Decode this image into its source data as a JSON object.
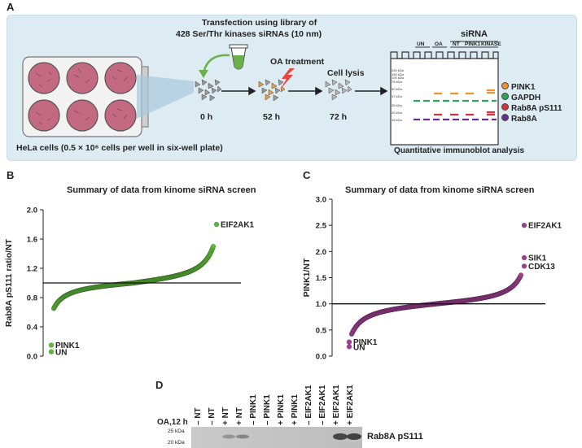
{
  "panels": {
    "A": "A",
    "B": "B",
    "C": "C",
    "D": "D"
  },
  "panelA": {
    "transfection_line1": "Transfection using library of",
    "transfection_line2": "428 Ser/Thr kinases  siRNAs (10 nm)",
    "oa_treatment": "OA treatment",
    "cell_lysis": "Cell lysis",
    "time_0": "0 h",
    "time_52": "52 h",
    "time_72": "72 h",
    "hela_caption": "HeLa cells (0.5 × 10⁶ cells per well in six-well plate)",
    "sirna_header": "siRNA",
    "lanes": [
      "UN",
      "OA",
      "NT",
      "PINK1",
      "KINASE"
    ],
    "mw_markers": [
      "250 kDa",
      "150 kDa",
      "100 kDa",
      "75 kDa",
      "50 kDa",
      "37 kDa",
      "25 kDa",
      "20 kDa",
      "15 kDa"
    ],
    "legend": [
      {
        "label": "PINK1",
        "color": "#f0932b"
      },
      {
        "label": "GAPDH",
        "color": "#2ea55a"
      },
      {
        "label": "Rab8A pS111",
        "color": "#d6303a"
      },
      {
        "label": "Rab8A",
        "color": "#6b2c91"
      }
    ],
    "immunoblot_caption": "Quantitative immunoblot analysis"
  },
  "chart_data": [
    {
      "type": "scatter",
      "panel": "B",
      "title": "Summary of data from kinome siRNA screen",
      "xlabel": "",
      "ylabel": "Rab8A pS111 ratio/NT",
      "ylim": [
        0.0,
        2.0
      ],
      "yticks": [
        "0.0",
        "0.4",
        "0.8",
        "1.2",
        "1.6",
        "2.0"
      ],
      "reference_line": 1.0,
      "color": "#5cb83a",
      "n_points": 428,
      "sorted_range": [
        0.65,
        1.5
      ],
      "highlighted": [
        {
          "label": "EIF2AK1",
          "value": 1.8
        },
        {
          "label": "PINK1",
          "value": 0.15
        },
        {
          "label": "UN",
          "value": 0.06
        }
      ]
    },
    {
      "type": "scatter",
      "panel": "C",
      "title": "Summary of data from kinome siRNA screen",
      "xlabel": "",
      "ylabel": "PINK1/NT",
      "ylim": [
        0.0,
        3.0
      ],
      "yticks": [
        "0.0",
        "0.5",
        "1.0",
        "1.5",
        "2.0",
        "2.5",
        "3.0"
      ],
      "reference_line": 1.0,
      "color": "#9c3f91",
      "n_points": 428,
      "sorted_range": [
        0.42,
        1.55
      ],
      "highlighted": [
        {
          "label": "EIF2AK1",
          "value": 2.5
        },
        {
          "label": "SIK1",
          "value": 1.88
        },
        {
          "label": "CDK13",
          "value": 1.72
        },
        {
          "label": "PINK1",
          "value": 0.27
        },
        {
          "label": "UN",
          "value": 0.18
        }
      ]
    }
  ],
  "panelD": {
    "row_label": "OA,12 h",
    "lanes": [
      {
        "oa": "–",
        "sirna": "NT"
      },
      {
        "oa": "–",
        "sirna": "NT"
      },
      {
        "oa": "+",
        "sirna": "NT"
      },
      {
        "oa": "+",
        "sirna": "NT"
      },
      {
        "oa": "–",
        "sirna": "PINK1"
      },
      {
        "oa": "–",
        "sirna": "PINK1"
      },
      {
        "oa": "+",
        "sirna": "PINK1"
      },
      {
        "oa": "+",
        "sirna": "PINK1"
      },
      {
        "oa": "–",
        "sirna": "EIF2AK1"
      },
      {
        "oa": "–",
        "sirna": "EIF2AK1"
      },
      {
        "oa": "+",
        "sirna": "EIF2AK1"
      },
      {
        "oa": "+",
        "sirna": "EIF2AK1"
      }
    ],
    "mw_markers": [
      "25 kDa",
      "20 kDa"
    ],
    "band_label": "Rab8A pS111"
  }
}
